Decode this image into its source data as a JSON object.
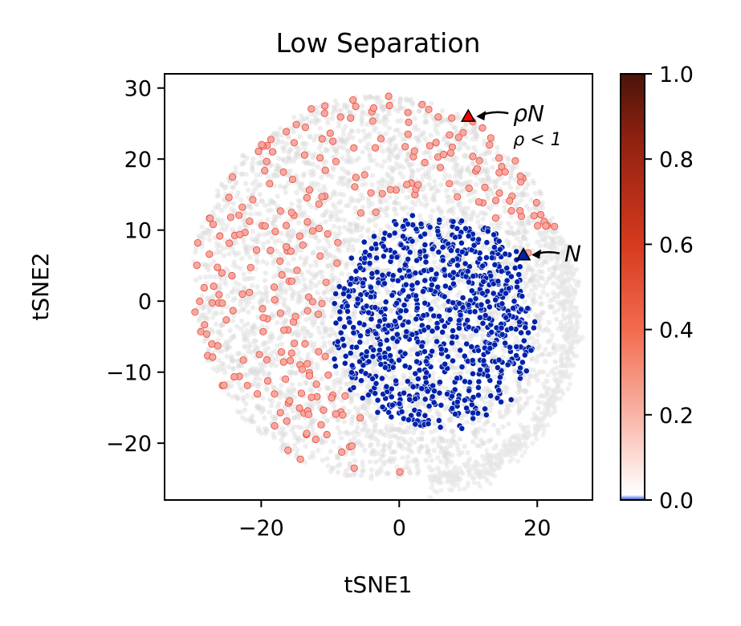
{
  "chart_data": {
    "type": "scatter",
    "title": "Low Separation",
    "xlabel": "tSNE1",
    "ylabel": "tSNE2",
    "xlim": [
      -34,
      28
    ],
    "ylim": [
      -28,
      32
    ],
    "xticks": [
      -20,
      0,
      20
    ],
    "yticks": [
      -20,
      -10,
      0,
      10,
      20,
      30
    ],
    "xtick_labels": [
      "−20",
      "0",
      "20"
    ],
    "ytick_labels": [
      "−20",
      "−10",
      "0",
      "10",
      "20",
      "30"
    ],
    "grid": false,
    "background_cloud": {
      "description": "dense light-grey point cloud",
      "center": [
        -3,
        2
      ],
      "radius": 27,
      "color": "#d9d9d9"
    },
    "series": [
      {
        "name": "N cluster",
        "color": "#0022aa",
        "center": [
          5,
          -3
        ],
        "approx_count": 900
      },
      {
        "name": "rhoN sparse points",
        "color": "#f6a8a0",
        "edge_color": "#e84a3c",
        "approx_count": 260
      }
    ],
    "annotations": [
      {
        "label": "ρN",
        "sublabel": "ρ < 1",
        "marker_at": [
          10,
          26
        ],
        "marker_color": "#ff0000"
      },
      {
        "label": "N",
        "sublabel": "",
        "marker_at": [
          18,
          6.5
        ],
        "marker_color": "#0022aa"
      }
    ],
    "colorbar": {
      "range": [
        0,
        1
      ],
      "ticks": [
        0.0,
        0.2,
        0.4,
        0.6,
        0.8,
        1.0
      ],
      "tick_labels": [
        "0.0",
        "0.2",
        "0.4",
        "0.6",
        "0.8",
        "1.0"
      ],
      "colors": [
        "#2b4fd6",
        "#ffffff",
        "#f8b4a6",
        "#f26b4f",
        "#d63a1e",
        "#8f2010",
        "#4a140a"
      ]
    }
  }
}
